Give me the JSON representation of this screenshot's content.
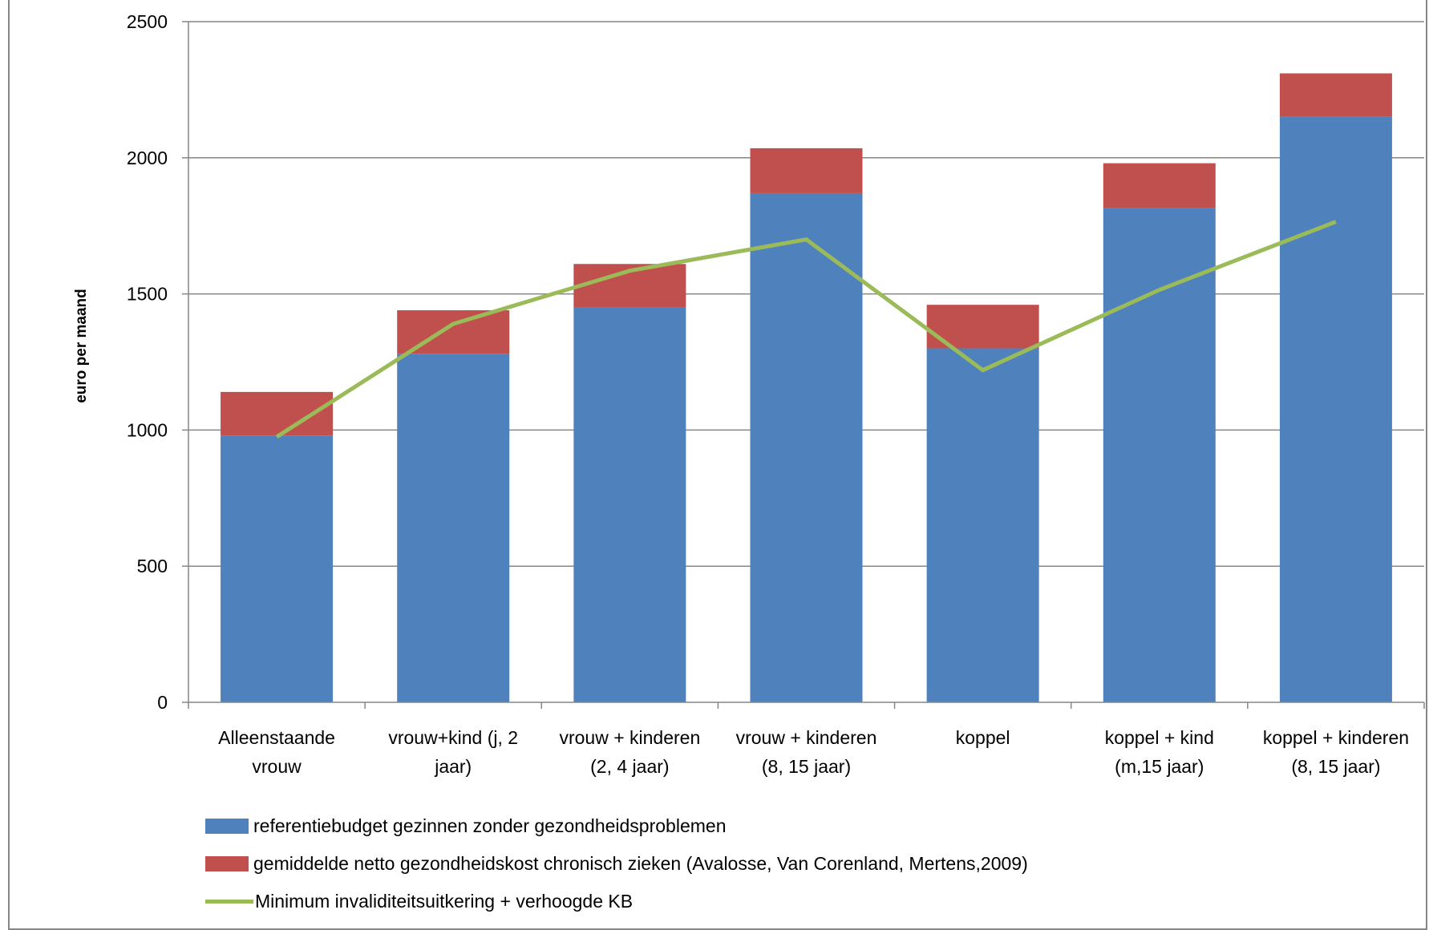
{
  "chart_data": {
    "type": "bar",
    "stacked": true,
    "title": "",
    "xlabel": "",
    "ylabel": "euro per maand",
    "ylim": [
      0,
      2500
    ],
    "yticks": [
      0,
      500,
      1000,
      1500,
      2000,
      2500
    ],
    "grid": true,
    "legend_position": "bottom",
    "categories": [
      [
        "Alleenstaande",
        "vrouw"
      ],
      [
        "vrouw+kind (j, 2",
        "jaar)"
      ],
      [
        "vrouw + kinderen",
        "(2, 4 jaar)"
      ],
      [
        "vrouw + kinderen",
        "(8, 15 jaar)"
      ],
      [
        "koppel"
      ],
      [
        "koppel + kind",
        "(m,15 jaar)"
      ],
      [
        "koppel + kinderen",
        "(8, 15 jaar)"
      ]
    ],
    "series": [
      {
        "name": "referentiebudget gezinnen zonder gezondheidsproblemen",
        "kind": "bar",
        "color": "#4f81bd",
        "values": [
          980,
          1280,
          1450,
          1870,
          1300,
          1815,
          2150
        ]
      },
      {
        "name": "gemiddelde netto gezondheidskost chronisch zieken (Avalosse, Van Corenland, Mertens,2009)",
        "kind": "bar",
        "color": "#c0504d",
        "values": [
          160,
          160,
          160,
          165,
          160,
          165,
          160
        ]
      },
      {
        "name": "Minimum invaliditeitsuitkering + verhoogde KB",
        "kind": "line",
        "color": "#9bbb59",
        "values": [
          975,
          1390,
          1585,
          1700,
          1220,
          1515,
          1765
        ]
      }
    ]
  }
}
